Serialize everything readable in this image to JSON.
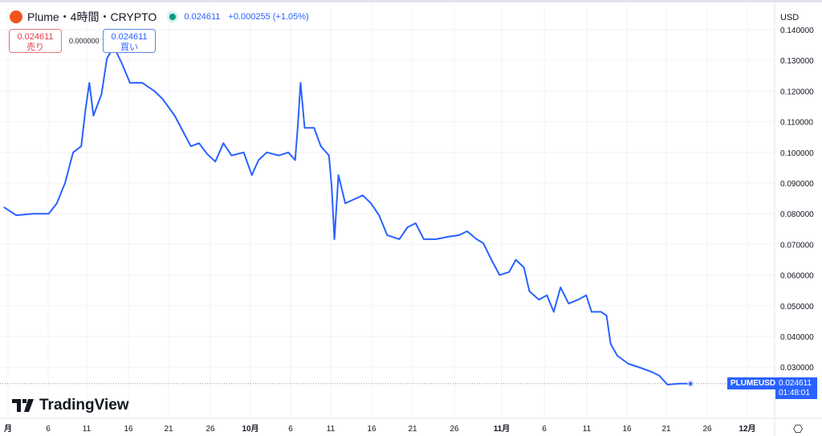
{
  "header": {
    "symbol": "Plume・4時間・CRYPTO",
    "last": "0.024611",
    "change": "+0.000255 (+1.05%)",
    "logo_text": "P"
  },
  "trade": {
    "sell_price": "0.024611",
    "sell_label": "売り",
    "spread": "0.000000",
    "buy_price": "0.024611",
    "buy_label": "買い"
  },
  "currency": "USD",
  "price_label": {
    "symbol": "PLUMEUSD",
    "price": "0.024611",
    "countdown": "01:48:01"
  },
  "brand": "TradingView",
  "colors": {
    "line": "#2962ff",
    "grid": "#f0f3fa",
    "label": "#2962ff"
  },
  "chart_data": {
    "type": "line",
    "ylim": [
      0.02,
      0.14
    ],
    "grid": true,
    "y_ticks": [
      "0.030000",
      "0.040000",
      "0.050000",
      "0.060000",
      "0.070000",
      "0.080000",
      "0.090000",
      "0.100000",
      "0.110000",
      "0.120000",
      "0.130000",
      "0.140000"
    ],
    "x_ticks": [
      "月",
      "6",
      "11",
      "16",
      "21",
      "26",
      "10月",
      "6",
      "11",
      "16",
      "21",
      "26",
      "11月",
      "6",
      "11",
      "16",
      "21",
      "26",
      "12月"
    ],
    "x": [
      "08-31 12:00",
      "09-02 00:00",
      "09-04 00:00",
      "09-06 00:00",
      "09-07 00:00",
      "09-08 00:00",
      "09-09 00:00",
      "09-10 00:00",
      "09-10 12:00",
      "09-11 00:00",
      "09-11 12:00",
      "09-12 12:00",
      "09-13 04:00",
      "09-14 00:00",
      "09-15 00:00",
      "09-16 00:00",
      "09-17 12:00",
      "09-19 00:00",
      "09-20 00:00",
      "09-21 12:00",
      "09-22 12:00",
      "09-23 12:00",
      "09-24 12:00",
      "09-25 12:00",
      "09-26 12:00",
      "09-27 12:00",
      "09-28 12:00",
      "09-30 00:00",
      "10-01 00:00",
      "10-01 20:00",
      "10-02 20:00",
      "10-04 08:00",
      "10-05 12:00",
      "10-06 08:00",
      "10-06 16:00",
      "10-07 00:00",
      "10-07 12:00",
      "10-08 16:00",
      "10-09 12:00",
      "10-10 12:00",
      "10-10 20:00",
      "10-11 04:00",
      "10-11 16:00",
      "10-12 12:00",
      "10-13 16:00",
      "10-14 16:00",
      "10-15 16:00",
      "10-16 16:00",
      "10-17 16:00",
      "10-19 04:00",
      "10-20 04:00",
      "10-21 04:00",
      "10-22 04:00",
      "10-23 16:00",
      "10-25 04:00",
      "10-26 12:00",
      "10-27 12:00",
      "10-28 16:00",
      "10-29 12:00",
      "10-30 12:00",
      "10-31 12:00",
      "11-01 16:00",
      "11-02 12:00",
      "11-03 12:00",
      "11-04 04:00",
      "11-05 08:00",
      "11-06 08:00",
      "11-07 04:00",
      "11-08 00:00",
      "11-09 00:00",
      "11-10 04:00",
      "11-11 04:00",
      "11-11 20:00",
      "11-13 00:00",
      "11-13 16:00",
      "11-14 04:00",
      "11-15 00:00",
      "11-16 08:00",
      "11-17 20:00",
      "11-19 04:00",
      "11-20 04:00",
      "11-21 04:00",
      "11-22 16:00",
      "11-24 00:00"
    ],
    "y": [
      0.0821,
      0.0795,
      0.08,
      0.08,
      0.0834,
      0.09,
      0.1,
      0.102,
      0.1135,
      0.1227,
      0.112,
      0.119,
      0.1306,
      0.1345,
      0.129,
      0.1227,
      0.1227,
      0.12,
      0.1175,
      0.112,
      0.107,
      0.102,
      0.103,
      0.0995,
      0.097,
      0.103,
      0.099,
      0.1,
      0.0926,
      0.0975,
      0.1,
      0.099,
      0.1,
      0.0975,
      0.109,
      0.1227,
      0.108,
      0.108,
      0.102,
      0.099,
      0.0887,
      0.0717,
      0.0926,
      0.0834,
      0.0848,
      0.086,
      0.0834,
      0.0795,
      0.073,
      0.0717,
      0.0756,
      0.0769,
      0.0717,
      0.0717,
      0.0725,
      0.073,
      0.0743,
      0.0717,
      0.0704,
      0.065,
      0.06,
      0.061,
      0.065,
      0.0625,
      0.0547,
      0.052,
      0.0534,
      0.048,
      0.056,
      0.0507,
      0.052,
      0.0534,
      0.048,
      0.048,
      0.0468,
      0.0376,
      0.0337,
      0.0311,
      0.0298,
      0.0285,
      0.0272,
      0.0243,
      0.0246,
      0.0246
    ],
    "last_value": 0.024611
  }
}
